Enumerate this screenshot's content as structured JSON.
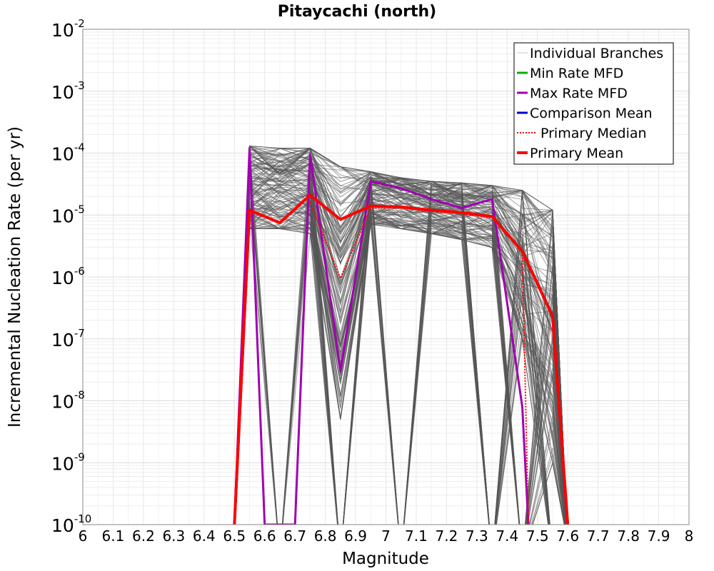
{
  "chart_data": {
    "type": "line",
    "title": "Pitaycachi (north)",
    "xlabel": "Magnitude",
    "ylabel": "Incremental Nucleation Rate (per yr)",
    "xlim": [
      6.0,
      8.0
    ],
    "ylim": [
      1e-10,
      0.01
    ],
    "y_scale": "log",
    "grid": true,
    "legend_position": "top-right",
    "x_ticks": [
      "6",
      "6.1",
      "6.2",
      "6.3",
      "6.4",
      "6.5",
      "6.6",
      "6.7",
      "6.8",
      "6.9",
      "7",
      "7.1",
      "7.2",
      "7.3",
      "7.4",
      "7.5",
      "7.6",
      "7.7",
      "7.8",
      "7.9",
      "8"
    ],
    "y_ticks": [
      {
        "base": "10",
        "exp": "-10"
      },
      {
        "base": "10",
        "exp": "-9"
      },
      {
        "base": "10",
        "exp": "-8"
      },
      {
        "base": "10",
        "exp": "-7"
      },
      {
        "base": "10",
        "exp": "-6"
      },
      {
        "base": "10",
        "exp": "-5"
      },
      {
        "base": "10",
        "exp": "-4"
      },
      {
        "base": "10",
        "exp": "-3"
      },
      {
        "base": "10",
        "exp": "-2"
      }
    ],
    "legend": [
      {
        "name": "Individual Branches",
        "color": "#c8c8c8",
        "style": "solid"
      },
      {
        "name": "Min Rate MFD",
        "color": "#00b000",
        "style": "solid"
      },
      {
        "name": "Max Rate MFD",
        "color": "#a000b0",
        "style": "solid"
      },
      {
        "name": "Comparison Mean",
        "color": "#0000d0",
        "style": "solid"
      },
      {
        "name": "Primary Median",
        "color": "#ff0000",
        "style": "dotted"
      },
      {
        "name": "Primary Mean",
        "color": "#ff0000",
        "style": "thick"
      }
    ],
    "series": [
      {
        "name": "Primary Mean",
        "color": "#ff0000",
        "style": "thick",
        "x": [
          6.5,
          6.55,
          6.65,
          6.75,
          6.85,
          6.95,
          7.05,
          7.15,
          7.25,
          7.35,
          7.45,
          7.55,
          7.6
        ],
        "y": [
          1e-10,
          1.2e-05,
          7.5e-06,
          2.1e-05,
          8.5e-06,
          1.4e-05,
          1.35e-05,
          1.2e-05,
          1.1e-05,
          9.5e-06,
          2.6e-06,
          2.3e-07,
          1e-10
        ]
      },
      {
        "name": "Primary Median",
        "color": "#ff0000",
        "style": "dotted",
        "x": [
          6.75,
          6.85,
          6.95,
          7.05,
          7.15,
          7.25,
          7.35,
          7.45,
          7.47
        ],
        "y": [
          1.6e-05,
          9.5e-07,
          1.3e-05,
          1.3e-05,
          1.15e-05,
          1.05e-05,
          9e-06,
          2.5e-06,
          1e-10
        ]
      },
      {
        "name": "Max Rate MFD",
        "color": "#a000b0",
        "style": "solid",
        "x": [
          6.5,
          6.55,
          6.6,
          6.7,
          6.75,
          6.85,
          6.95,
          7.05,
          7.15,
          7.25,
          7.35,
          7.45,
          7.47
        ],
        "y": [
          1e-10,
          0.00012,
          1e-10,
          1e-10,
          9.5e-05,
          3e-08,
          3.5e-05,
          2.7e-05,
          1.8e-05,
          1.3e-05,
          1.8e-05,
          8e-09,
          1e-10
        ]
      }
    ],
    "branch_envelope": {
      "name": "Individual Branches",
      "color": "#555555",
      "x": [
        6.55,
        6.65,
        6.75,
        6.85,
        6.95,
        7.05,
        7.15,
        7.25,
        7.35,
        7.45,
        7.55
      ],
      "upper": [
        0.00013,
        0.00012,
        0.00012,
        6e-05,
        5e-05,
        4e-05,
        3.5e-05,
        3.3e-05,
        3e-05,
        2.5e-05,
        1.2e-05
      ],
      "lower": [
        6e-06,
        6e-06,
        5e-06,
        5e-09,
        7e-06,
        6e-06,
        5e-06,
        4e-06,
        3e-06,
        1e-07,
        1e-09
      ]
    }
  }
}
